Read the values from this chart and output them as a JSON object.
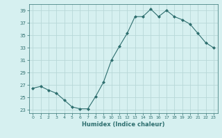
{
  "title": "",
  "xlabel": "Humidex (Indice chaleur)",
  "ylabel": "",
  "x": [
    0,
    1,
    2,
    3,
    4,
    5,
    6,
    7,
    8,
    9,
    10,
    11,
    12,
    13,
    14,
    15,
    16,
    17,
    18,
    19,
    20,
    21,
    22,
    23
  ],
  "y": [
    26.5,
    26.8,
    26.2,
    25.7,
    24.6,
    23.5,
    23.2,
    23.2,
    25.2,
    27.5,
    31.0,
    33.2,
    35.3,
    38.0,
    38.0,
    39.2,
    38.0,
    39.0,
    38.0,
    37.5,
    36.8,
    35.3,
    33.8,
    33.0
  ],
  "line_color": "#2d6e6e",
  "marker": "D",
  "marker_size": 2.0,
  "bg_color": "#d6f0f0",
  "grid_color": "#b8d8d8",
  "tick_color": "#2d6e6e",
  "label_color": "#2d6e6e",
  "yticks": [
    23,
    25,
    27,
    29,
    31,
    33,
    35,
    37,
    39
  ],
  "xticks": [
    0,
    1,
    2,
    3,
    4,
    5,
    6,
    7,
    8,
    9,
    10,
    11,
    12,
    13,
    14,
    15,
    16,
    17,
    18,
    19,
    20,
    21,
    22,
    23
  ],
  "xlim": [
    -0.5,
    23.5
  ],
  "ylim": [
    22.5,
    40.0
  ]
}
